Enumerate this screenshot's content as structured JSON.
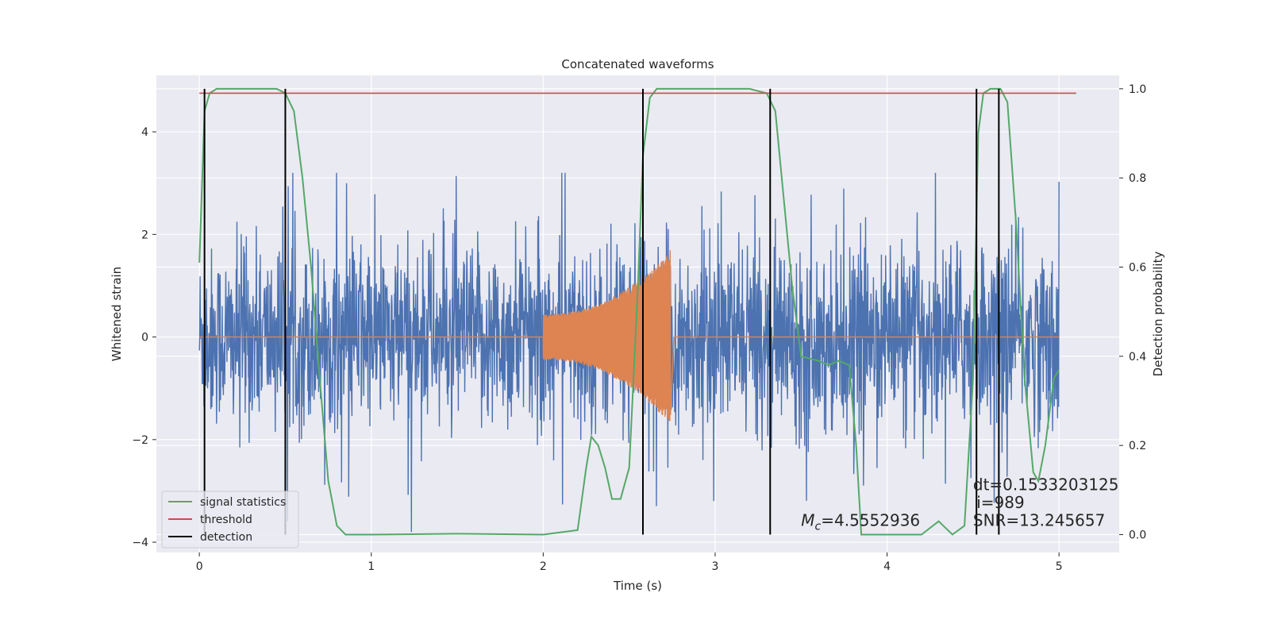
{
  "chart_data": {
    "type": "line",
    "title": "Concatenated waveforms",
    "xlabel": "Time (s)",
    "ylabel": "Whitened strain",
    "ylabel_right": "Detection probability",
    "xlim": [
      -0.25,
      5.35
    ],
    "ylim": [
      -4.2,
      5.1
    ],
    "ylim_right": [
      -0.04,
      1.03
    ],
    "x_ticks": [
      0,
      1,
      2,
      3,
      4,
      5
    ],
    "y_ticks": [
      -4,
      -2,
      0,
      2,
      4
    ],
    "y_ticks_right": [
      0.0,
      0.2,
      0.4,
      0.6,
      0.8,
      1.0
    ],
    "y_tick_labels": [
      "−4",
      "−2",
      "0",
      "2",
      "4"
    ],
    "y_tick_labels_right": [
      "0.0",
      "0.2",
      "0.4",
      "0.6",
      "0.8",
      "1.0"
    ],
    "grid": true,
    "legend_position": "lower-left",
    "colors": {
      "noise": "#4c72b0",
      "template": "#dd8452",
      "signal_statistics": "#55a868",
      "threshold": "#c44e52",
      "detection": "#000000",
      "background": "#eaeaf2"
    },
    "series": [
      {
        "name": "signal statistics",
        "axis": "right",
        "x": [
          0.0,
          0.03,
          0.06,
          0.1,
          0.3,
          0.45,
          0.5,
          0.55,
          0.6,
          0.65,
          0.7,
          0.75,
          0.8,
          0.85,
          1.0,
          1.5,
          2.0,
          2.2,
          2.25,
          2.28,
          2.32,
          2.36,
          2.4,
          2.45,
          2.5,
          2.55,
          2.58,
          2.62,
          2.66,
          2.7,
          2.75,
          2.85,
          3.2,
          3.3,
          3.35,
          3.4,
          3.45,
          3.5,
          3.6,
          3.66,
          3.72,
          3.78,
          3.82,
          3.85,
          4.1,
          4.2,
          4.3,
          4.38,
          4.45,
          4.5,
          4.53,
          4.56,
          4.6,
          4.66,
          4.7,
          4.75,
          4.8,
          4.85,
          4.88,
          4.92,
          4.97,
          5.0
        ],
        "y": [
          0.61,
          0.95,
          0.99,
          1.0,
          1.0,
          1.0,
          0.99,
          0.95,
          0.8,
          0.6,
          0.35,
          0.12,
          0.02,
          0.0,
          0.0,
          0.002,
          0.0,
          0.01,
          0.15,
          0.22,
          0.2,
          0.15,
          0.08,
          0.08,
          0.15,
          0.55,
          0.85,
          0.98,
          1.0,
          1.0,
          1.0,
          1.0,
          1.0,
          0.99,
          0.95,
          0.75,
          0.55,
          0.4,
          0.39,
          0.38,
          0.39,
          0.38,
          0.2,
          0.0,
          0.0,
          0.0,
          0.03,
          0.0,
          0.02,
          0.35,
          0.9,
          0.99,
          1.0,
          1.0,
          0.97,
          0.7,
          0.35,
          0.14,
          0.12,
          0.2,
          0.35,
          0.37
        ]
      },
      {
        "name": "threshold",
        "axis": "right",
        "x": [
          0.0,
          5.1
        ],
        "y": [
          0.99,
          0.99
        ]
      },
      {
        "name": "detection",
        "axis": "right",
        "x_positions": [
          0.03,
          0.5,
          2.58,
          3.32,
          4.52,
          4.65
        ],
        "y_range": [
          0.0,
          1.0
        ]
      },
      {
        "name": "",
        "axis": "left",
        "description_of_shape": "whitened noise with amplitude roughly ±3",
        "x_range": [
          0.0,
          5.0
        ],
        "amplitude": 3.0
      },
      {
        "name": "",
        "axis": "left",
        "description_of_shape": "chirp from 2.0 s to 2.74 s growing from ±0.45 to ±1.7",
        "x_range": [
          2.0,
          2.74
        ],
        "amplitude_start": 0.45,
        "amplitude_end": 1.7
      }
    ],
    "annotations": [
      {
        "text": "dt=0.1533203125",
        "x": 4.5,
        "y_right": 0.1
      },
      {
        "text": "i=989",
        "x": 4.52,
        "y_right": 0.06
      },
      {
        "text": "SNR=13.245657",
        "x": 4.5,
        "y_right": 0.02
      },
      {
        "text_prefix": "M",
        "text_sub": "c",
        "text_suffix": "=4.5552936",
        "x": 3.5,
        "y_right": 0.02
      }
    ],
    "legend": [
      "signal statistics",
      "threshold",
      "detection"
    ]
  }
}
